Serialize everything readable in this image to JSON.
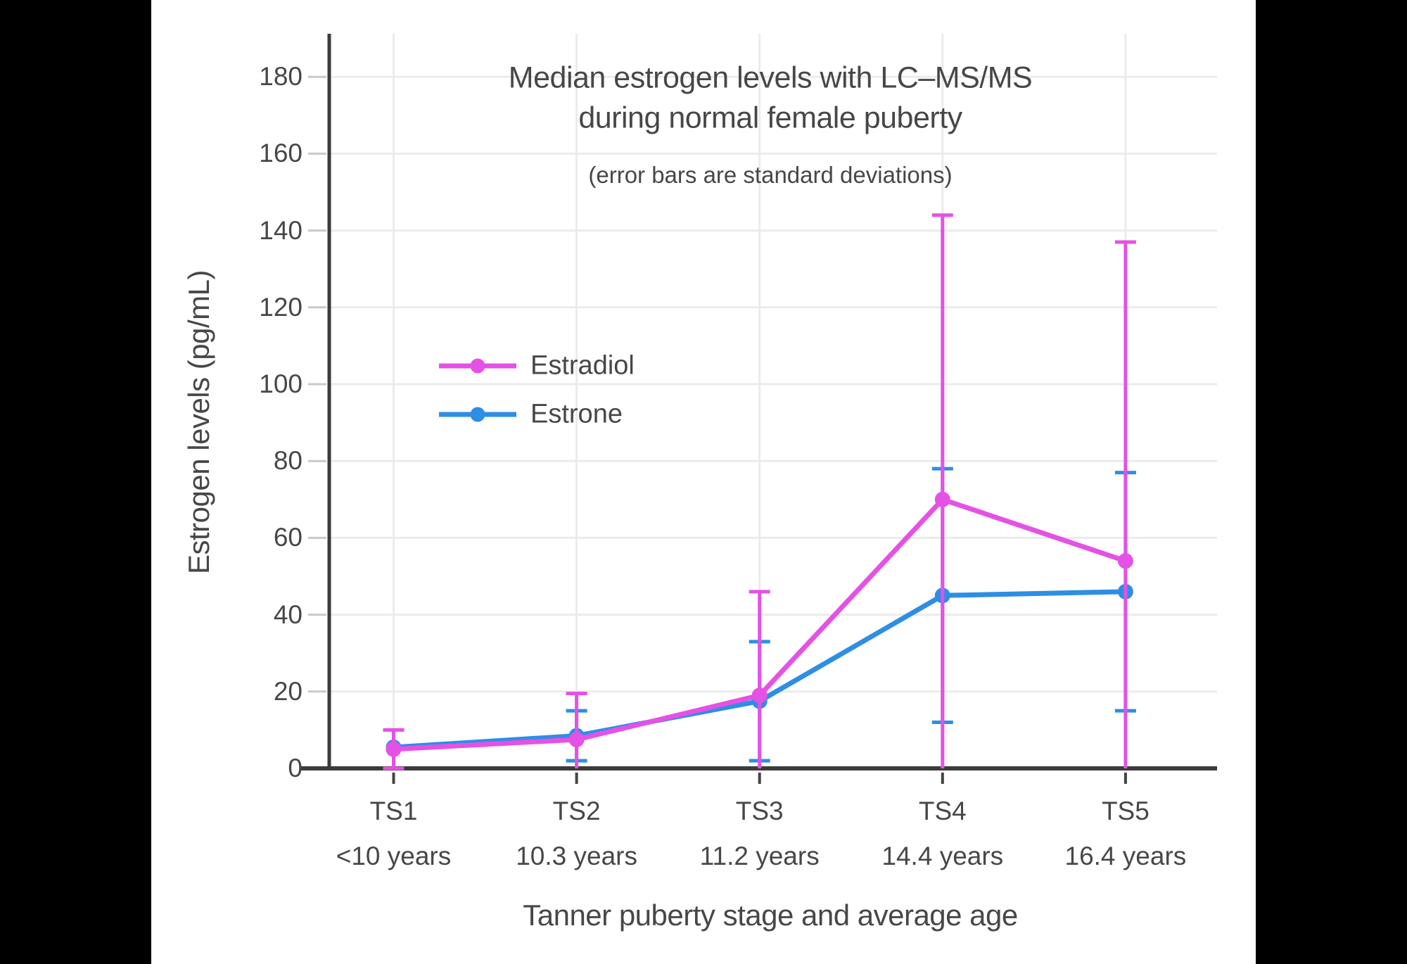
{
  "page": {
    "background": "#000000",
    "panel_background": "#ffffff",
    "text_color": "#474747",
    "axis_line_color": "#3b3b3b",
    "grid_color": "#ebebeb",
    "y_tick_color": "#c9c9c9"
  },
  "chart_data": {
    "type": "line",
    "title": "Median estrogen levels with LC–MS/MS",
    "title_line2": "during normal female puberty",
    "subtitle": "(error bars are standard deviations)",
    "xlabel": "Tanner puberty stage and average age",
    "ylabel": "Estrogen levels (pg/mL)",
    "categories": [
      "TS1",
      "TS2",
      "TS3",
      "TS4",
      "TS5"
    ],
    "category_sublabels": [
      "<10 years",
      "10.3 years",
      "11.2 years",
      "14.4 years",
      "16.4 years"
    ],
    "yticks": [
      0,
      20,
      40,
      60,
      80,
      100,
      120,
      140,
      160,
      180
    ],
    "ylim": [
      0,
      191
    ],
    "grid": true,
    "legend_position": "inside-upper-left",
    "error_bars": "standard deviations, clipped at y=0",
    "series": [
      {
        "name": "Estradiol",
        "color": "#E551E5",
        "values": [
          5,
          7.5,
          19,
          70,
          54
        ],
        "sd": [
          5,
          12,
          27,
          74,
          83
        ],
        "error_bar_tops": [
          10,
          19.5,
          46,
          144,
          137
        ]
      },
      {
        "name": "Estrone",
        "color": "#2D8EE4",
        "values": [
          5.5,
          8.5,
          17.5,
          45,
          46
        ],
        "sd": [
          0,
          6.5,
          15.5,
          33,
          31
        ],
        "error_bar_tops": [
          null,
          15,
          33,
          78,
          77
        ]
      }
    ]
  },
  "legend": {
    "items": [
      {
        "label": "Estradiol"
      },
      {
        "label": "Estrone"
      }
    ]
  }
}
